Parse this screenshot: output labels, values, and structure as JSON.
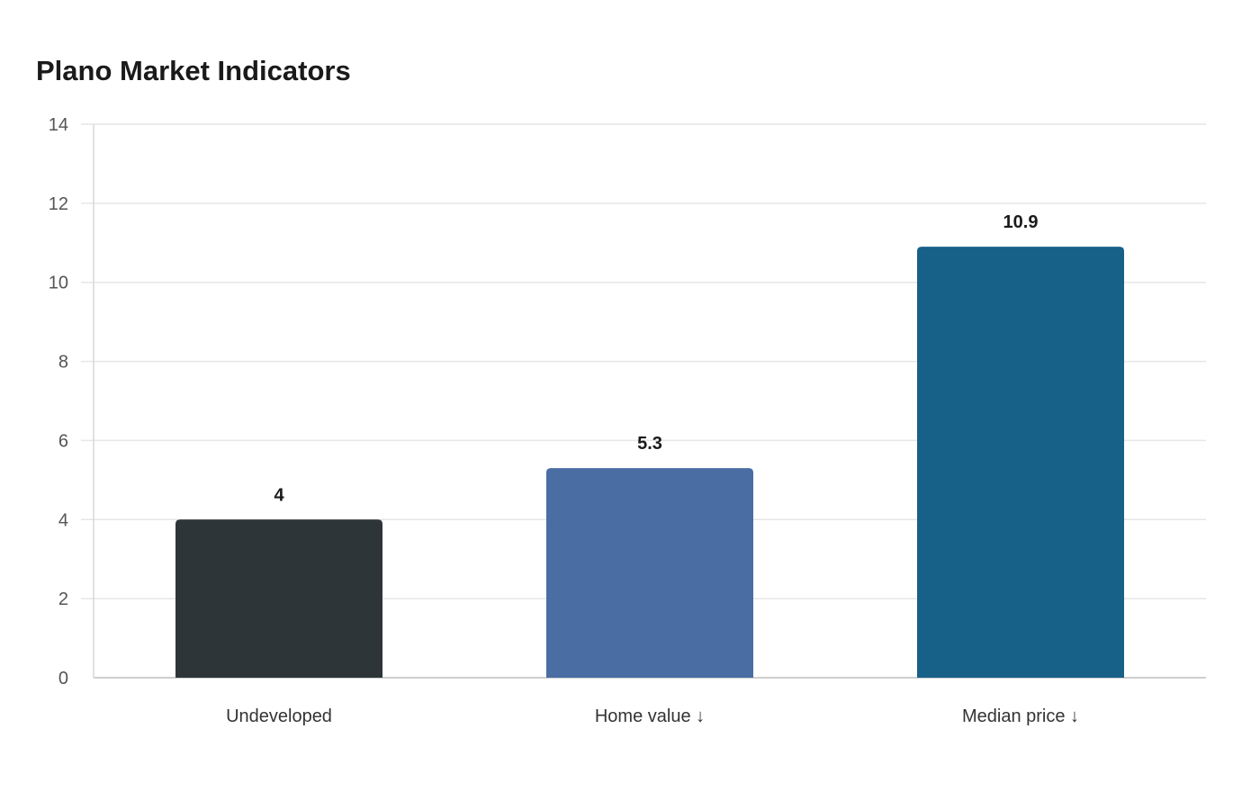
{
  "chart_data": {
    "type": "bar",
    "title": "Plano Market Indicators",
    "xlabel": "",
    "ylabel": "",
    "categories": [
      "Undeveloped",
      "Home value ↓",
      "Median price ↓"
    ],
    "values": [
      4,
      5.3,
      10.9
    ],
    "value_labels": [
      "4",
      "5.3",
      "10.9"
    ],
    "colors": [
      "#2e3538",
      "#4a6da3",
      "#176087"
    ],
    "ylim": [
      0,
      14
    ],
    "yticks": [
      0,
      2,
      4,
      6,
      8,
      10,
      12,
      14
    ],
    "grid": true,
    "legend": "none"
  }
}
